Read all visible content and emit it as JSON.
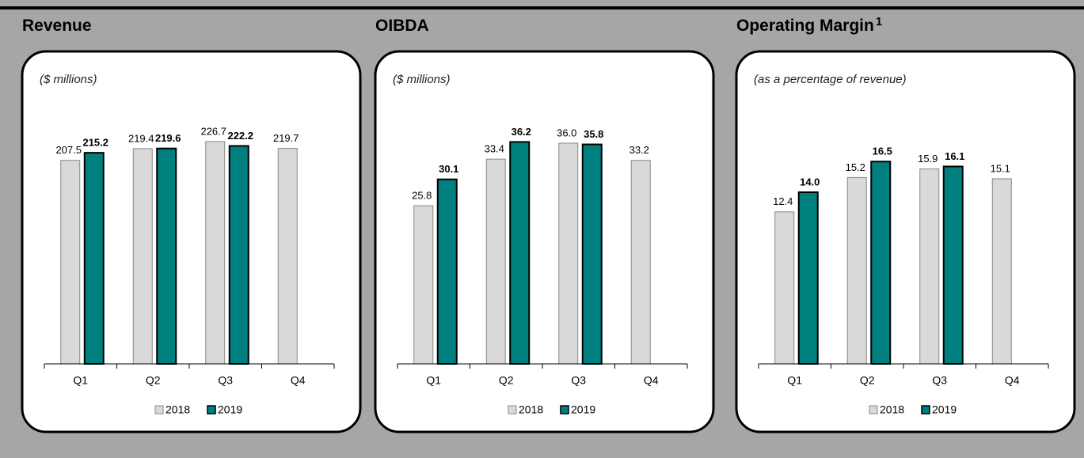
{
  "chart_data": [
    {
      "type": "bar",
      "title": "Revenue",
      "subtitle": "($ millions)",
      "categories": [
        "Q1",
        "Q2",
        "Q3",
        "Q4"
      ],
      "series": [
        {
          "name": "2018",
          "color": "#d9d9d9",
          "values": [
            207.5,
            219.4,
            226.7,
            219.7
          ]
        },
        {
          "name": "2019",
          "color": "#007f7f",
          "values": [
            215.2,
            219.6,
            222.2,
            null
          ]
        }
      ],
      "ylim": [
        0,
        250
      ]
    },
    {
      "type": "bar",
      "title": "OIBDA",
      "subtitle": "($ millions)",
      "categories": [
        "Q1",
        "Q2",
        "Q3",
        "Q4"
      ],
      "series": [
        {
          "name": "2018",
          "color": "#d9d9d9",
          "values": [
            25.8,
            33.4,
            36.0,
            33.2
          ]
        },
        {
          "name": "2019",
          "color": "#007f7f",
          "values": [
            30.1,
            36.2,
            35.8,
            null
          ]
        }
      ],
      "value_labels": [
        [
          "25.8",
          "33.4",
          "36.0",
          "33.2"
        ],
        [
          "30.1",
          "36.2",
          "35.8",
          null
        ]
      ],
      "ylim": [
        0,
        40
      ]
    },
    {
      "type": "bar",
      "title": "Operating Margin",
      "title_note": "1",
      "subtitle": "(as a percentage of revenue)",
      "categories": [
        "Q1",
        "Q2",
        "Q3",
        "Q4"
      ],
      "series": [
        {
          "name": "2018",
          "color": "#d9d9d9",
          "values": [
            12.4,
            15.2,
            15.9,
            15.1
          ]
        },
        {
          "name": "2019",
          "color": "#007f7f",
          "values": [
            14.0,
            16.5,
            16.1,
            null
          ]
        }
      ],
      "value_labels": [
        [
          "12.4",
          "15.2",
          "15.9",
          "15.1"
        ],
        [
          "14.0",
          "16.5",
          "16.1",
          null
        ]
      ],
      "ylim": [
        0,
        20
      ]
    }
  ]
}
